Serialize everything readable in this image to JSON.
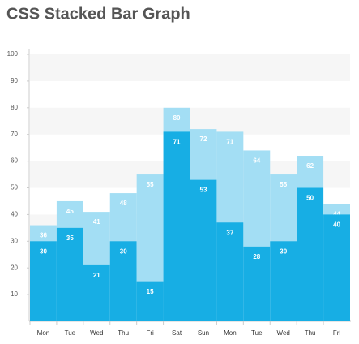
{
  "chart_data": {
    "type": "bar",
    "title": "CSS Stacked Bar Graph",
    "categories": [
      "Mon",
      "Tue",
      "Wed",
      "Thu",
      "Fri",
      "Sat",
      "Sun",
      "Mon",
      "Tue",
      "Wed",
      "Thu",
      "Fri"
    ],
    "series": [
      {
        "color": "#a3def4",
        "values": [
          36,
          45,
          41,
          48,
          55,
          80,
          72,
          71,
          64,
          55,
          62,
          44
        ]
      },
      {
        "color": "#17aee4",
        "values": [
          30,
          35,
          21,
          30,
          15,
          71,
          53,
          37,
          28,
          30,
          50,
          40
        ]
      }
    ],
    "ylim": [
      0,
      100
    ],
    "yticks": [
      10,
      20,
      30,
      40,
      50,
      60,
      70,
      80,
      90,
      100
    ],
    "grid": true
  }
}
